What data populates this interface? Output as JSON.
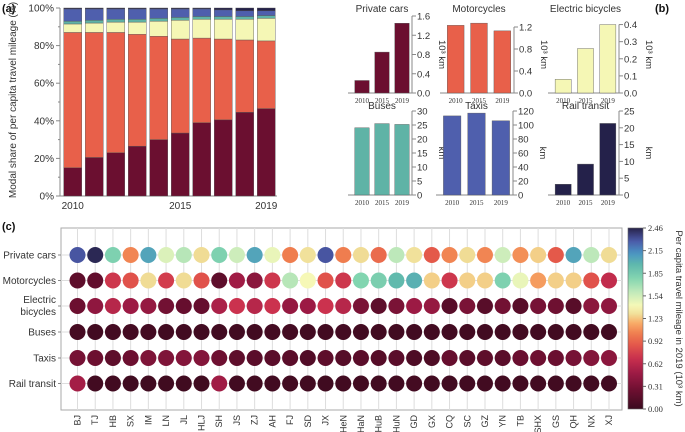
{
  "panel_labels": {
    "a": "(a)",
    "b": "(b)",
    "c": "(c)"
  },
  "colors": {
    "private_cars": "#6b0f30",
    "motorcycles": "#e8604a",
    "electric_bicycles": "#f5f7b5",
    "buses": "#5fb3a6",
    "taxis": "#4f5fad",
    "rail_transit": "#24214a"
  },
  "chart_data": [
    {
      "id": "a",
      "type": "bar",
      "stacked": true,
      "title": "",
      "xlabel": "",
      "ylabel": "Modal share of per capita travel mileage (%)",
      "categories": [
        "2010",
        "2011",
        "2012",
        "2013",
        "2014",
        "2015",
        "2016",
        "2017",
        "2018",
        "2019"
      ],
      "x_tick_labels": [
        "2010",
        "",
        "",
        "",
        "",
        "2015",
        "",
        "",
        "",
        "2019"
      ],
      "y_ticks": [
        "0%",
        "20%",
        "40%",
        "60%",
        "80%",
        "100%"
      ],
      "ylim": [
        0,
        100
      ],
      "series": [
        {
          "name": "Private cars",
          "values": [
            15,
            20.5,
            23,
            26.5,
            30,
            33.5,
            39,
            40.5,
            44.5,
            46.5
          ]
        },
        {
          "name": "Motorcycles",
          "values": [
            72,
            66.5,
            64,
            59.5,
            55,
            50,
            45,
            43,
            38.5,
            36
          ]
        },
        {
          "name": "Electric bicycles",
          "values": [
            4.5,
            5,
            5.5,
            6.5,
            8,
            10,
            10,
            10.5,
            11,
            12
          ]
        },
        {
          "name": "Buses",
          "values": [
            1.5,
            1.5,
            1.5,
            1.5,
            1.5,
            1.5,
            1.5,
            1.5,
            1.5,
            1.5
          ]
        },
        {
          "name": "Taxis",
          "values": [
            6.5,
            6,
            5.5,
            5.5,
            5,
            4.5,
            4,
            3.5,
            3,
            2.5
          ]
        },
        {
          "name": "Rail transit",
          "values": [
            0.5,
            0.5,
            0.5,
            0.5,
            0.5,
            0.5,
            0.5,
            1,
            1.5,
            1.5
          ]
        }
      ],
      "grid": false
    },
    {
      "id": "b-private-cars",
      "type": "bar",
      "title": "Private cars",
      "categories": [
        "2010",
        "2015",
        "2019"
      ],
      "values": [
        0.26,
        0.85,
        1.45
      ],
      "ylabel": "10³ km",
      "ylim": [
        0,
        1.6
      ],
      "y_ticks": [
        "0.0",
        "0.4",
        "0.8",
        "1.2",
        "1.6"
      ]
    },
    {
      "id": "b-motorcycles",
      "type": "bar",
      "title": "Motorcycles",
      "categories": [
        "2010",
        "2015",
        "2019"
      ],
      "values": [
        1.23,
        1.27,
        1.13
      ],
      "ylabel": "10³ km",
      "ylim": [
        0,
        1.4
      ],
      "y_ticks": [
        "0.0",
        "0.4",
        "0.8",
        "1.2"
      ]
    },
    {
      "id": "b-electric-bicycles",
      "type": "bar",
      "title": "Electric bicycles",
      "categories": [
        "2010",
        "2015",
        "2019"
      ],
      "values": [
        0.08,
        0.26,
        0.4
      ],
      "ylabel": "10³ km",
      "ylim": [
        0,
        0.45
      ],
      "y_ticks": [
        "0.0",
        "0.1",
        "0.2",
        "0.3",
        "0.4"
      ]
    },
    {
      "id": "b-buses",
      "type": "bar",
      "title": "Buses",
      "categories": [
        "2010",
        "2015",
        "2019"
      ],
      "values": [
        24,
        25.5,
        25.2
      ],
      "ylabel": "km",
      "ylim": [
        0,
        30
      ],
      "y_ticks": [
        "0",
        "5",
        "10",
        "15",
        "20",
        "25",
        "30"
      ]
    },
    {
      "id": "b-taxis",
      "type": "bar",
      "title": "Taxis",
      "categories": [
        "2010",
        "2015",
        "2019"
      ],
      "values": [
        113,
        117,
        106
      ],
      "ylabel": "km",
      "ylim": [
        0,
        120
      ],
      "y_ticks": [
        "0",
        "20",
        "40",
        "60",
        "80",
        "100",
        "120"
      ]
    },
    {
      "id": "b-rail-transit",
      "type": "bar",
      "title": "Rail transit",
      "categories": [
        "2010",
        "2015",
        "2019"
      ],
      "values": [
        3.2,
        9.2,
        21.3
      ],
      "ylabel": "km",
      "ylim": [
        0,
        25
      ],
      "y_ticks": [
        "0",
        "5",
        "10",
        "15",
        "20",
        "25"
      ]
    },
    {
      "id": "c",
      "type": "heatmap",
      "title": "",
      "rows": [
        "Private cars",
        "Motorcycles",
        "Electric bicycles",
        "Buses",
        "Taxis",
        "Rail transit"
      ],
      "row_labels_display": [
        [
          "Private cars"
        ],
        [
          "Motorcycles"
        ],
        [
          "Electric",
          "bicycles"
        ],
        [
          "Buses"
        ],
        [
          "Taxis"
        ],
        [
          "Rail transit"
        ]
      ],
      "columns": [
        "BJ",
        "TJ",
        "HB",
        "SX",
        "IM",
        "LN",
        "JL",
        "HLJ",
        "SH",
        "JS",
        "ZJ",
        "AH",
        "FJ",
        "SD",
        "JX",
        "HeN",
        "HaN",
        "HuB",
        "HuN",
        "GD",
        "GX",
        "CQ",
        "SC",
        "GZ",
        "YN",
        "TB",
        "SHX",
        "GS",
        "QH",
        "NX",
        "XJ"
      ],
      "values_1e3km": [
        [
          2.3,
          2.44,
          1.8,
          1.05,
          2.05,
          1.5,
          1.62,
          1.28,
          1.8,
          1.55,
          2.05,
          1.45,
          1.02,
          1.3,
          2.3,
          1.02,
          1.28,
          0.95,
          1.6,
          1.3,
          0.88,
          1.05,
          1.28,
          1.05,
          1.55,
          1.08,
          1.25,
          0.88,
          2.05,
          1.6,
          1.28
        ],
        [
          0.18,
          0.2,
          0.72,
          0.85,
          1.28,
          0.75,
          1.28,
          0.85,
          0.18,
          0.5,
          0.4,
          0.72,
          1.62,
          1.4,
          0.85,
          0.72,
          1.78,
          1.82,
          1.95,
          2.0,
          1.25,
          0.72,
          1.25,
          1.25,
          1.8,
          1.45,
          1.12,
          1.25,
          1.25,
          0.85,
          0.65
        ],
        [
          0.25,
          0.42,
          0.6,
          0.48,
          0.45,
          0.28,
          0.22,
          0.22,
          0.55,
          0.7,
          0.6,
          0.7,
          0.45,
          0.48,
          0.7,
          0.6,
          0.32,
          0.18,
          0.32,
          0.48,
          0.45,
          0.15,
          0.32,
          0.15,
          0.28,
          0.15,
          0.3,
          0.26,
          0.15,
          0.4,
          0.42
        ],
        [
          0.06,
          0.04,
          0.05,
          0.05,
          0.05,
          0.04,
          0.04,
          0.04,
          0.04,
          0.04,
          0.04,
          0.05,
          0.05,
          0.04,
          0.04,
          0.05,
          0.04,
          0.04,
          0.04,
          0.04,
          0.04,
          0.04,
          0.04,
          0.04,
          0.04,
          0.04,
          0.04,
          0.04,
          0.04,
          0.04,
          0.04
        ],
        [
          0.3,
          0.25,
          0.18,
          0.25,
          0.34,
          0.34,
          0.36,
          0.36,
          0.26,
          0.18,
          0.16,
          0.16,
          0.16,
          0.12,
          0.18,
          0.14,
          0.16,
          0.14,
          0.16,
          0.1,
          0.1,
          0.22,
          0.16,
          0.18,
          0.16,
          0.24,
          0.26,
          0.24,
          0.3,
          0.36,
          0.4
        ],
        [
          0.52,
          0.04,
          0.04,
          0.03,
          0.03,
          0.03,
          0.03,
          0.03,
          0.5,
          0.04,
          0.04,
          0.04,
          0.04,
          0.04,
          0.03,
          0.04,
          0.04,
          0.04,
          0.04,
          0.05,
          0.04,
          0.04,
          0.04,
          0.04,
          0.04,
          0.04,
          0.04,
          0.04,
          0.04,
          0.04,
          0.04
        ]
      ],
      "colorbar": {
        "colormap": "Spectral (reversed)",
        "label": "Per capita travel mileage in 2019 (10³ km)",
        "range": [
          0,
          2.46
        ],
        "ticks": [
          "0.00",
          "0.31",
          "0.62",
          "0.92",
          "1.23",
          "1.54",
          "1.85",
          "2.15",
          "2.46"
        ]
      }
    }
  ]
}
